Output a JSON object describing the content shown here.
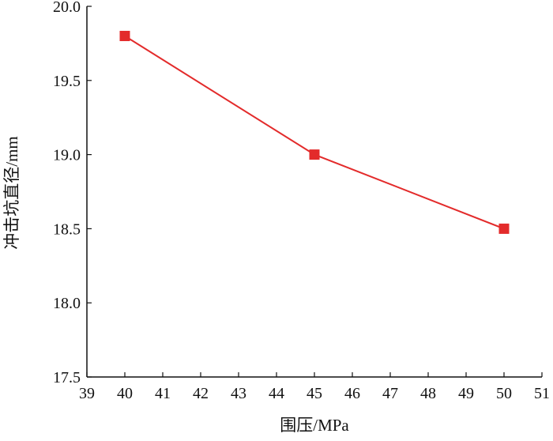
{
  "chart_data": {
    "type": "line",
    "title": "",
    "xlabel": "围压/MPa",
    "ylabel": "冲击坑直径/mm",
    "xlim": [
      39,
      51
    ],
    "ylim": [
      17.5,
      20.0
    ],
    "x_ticks": [
      "39",
      "40",
      "41",
      "42",
      "43",
      "44",
      "45",
      "46",
      "47",
      "48",
      "49",
      "50",
      "51"
    ],
    "y_ticks": [
      "17.5",
      "18.0",
      "18.5",
      "19.0",
      "19.5",
      "20.0"
    ],
    "grid": false,
    "legend": "none",
    "series": [
      {
        "x": [
          40,
          45,
          50
        ],
        "y": [
          19.8,
          19.0,
          18.5
        ],
        "color": "#e32b2b",
        "marker": "square"
      }
    ]
  }
}
